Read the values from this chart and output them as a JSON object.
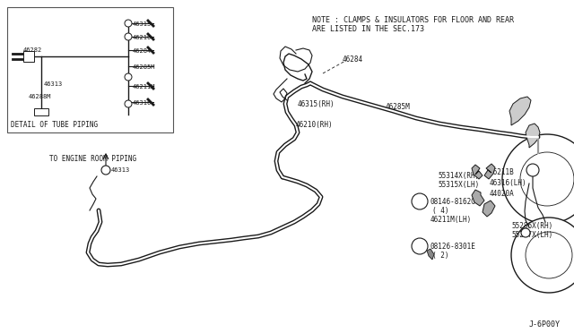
{
  "bg_color": "#ffffff",
  "line_color": "#1a1a1a",
  "border_color": "#555555",
  "text_color": "#1a1a1a",
  "note_line1": "NOTE : CLAMPS & INSULATORS FOR FLOOR AND REAR",
  "note_line2": "ARE LISTED IN THE SEC.173",
  "detail_box_label": "DETAIL OF TUBE PIPING",
  "engine_room_label": "TO ENGINE ROOM PIPING",
  "footer_text": "J-6P00Y",
  "figsize": [
    6.4,
    3.72
  ],
  "dpi": 100
}
